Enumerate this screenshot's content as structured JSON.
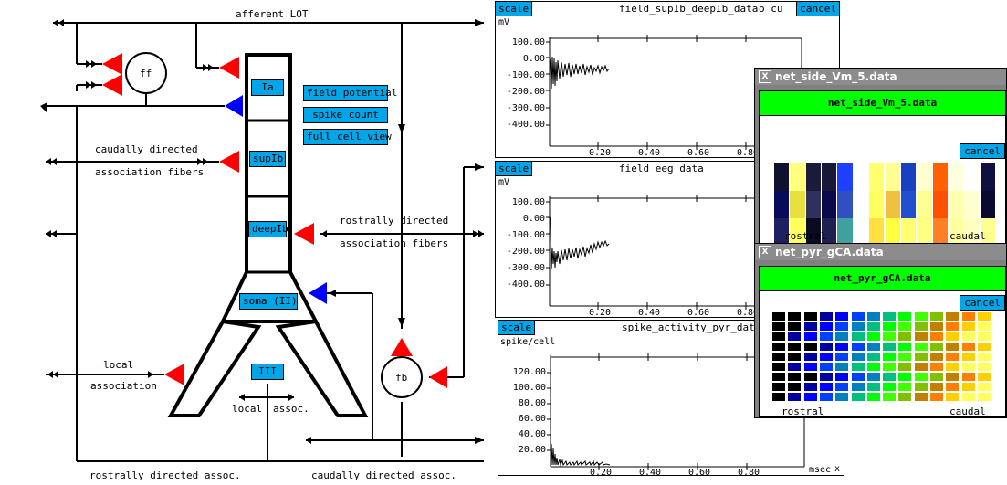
{
  "diagram": {
    "labels": {
      "afferent_lot": "afferent LOT",
      "ff": "ff",
      "fb": "fb",
      "caudal_1": "caudally directed",
      "caudal_2": "association fibers",
      "rostral_1": "rostrally directed",
      "rostral_2": "association fibers",
      "local_1": "local",
      "local_2": "association",
      "local_small": "local",
      "assoc_small": "assoc.",
      "rostral_bottom": "rostrally directed assoc.",
      "caudal_bottom": "caudally directed assoc."
    },
    "compartments": {
      "ia": "Ia",
      "supib": "supIb",
      "deepib": "deepIb",
      "soma": "soma (II)",
      "iii": "III"
    },
    "buttons": {
      "field_potential": "field potential",
      "spike_count": "spike count",
      "full_cell_view": "full cell view"
    },
    "colors": {
      "excitatory": "#ff0000",
      "inhibitory": "#0000ff",
      "button": "#00a6e8"
    }
  },
  "graphs": {
    "top": {
      "scale": "scale",
      "title": "field_supIb_deepIb_data",
      "unit": "mV",
      "extra": "o cu",
      "cancel": "cancel",
      "yticks": [
        "100.00",
        "0.00",
        "-100.00",
        "-200.00",
        "-300.00",
        "-400.00"
      ],
      "xticks": [
        "0.20",
        "0.40",
        "0.60",
        "0.80"
      ]
    },
    "mid": {
      "scale": "scale",
      "title": "field_eeg_data",
      "unit": "mV",
      "yticks": [
        "100.00",
        "0.00",
        "-100.00",
        "-200.00",
        "-300.00",
        "-400.00"
      ],
      "xticks": [
        "0.20",
        "0.40",
        "0.60",
        "0.80"
      ]
    },
    "bottom": {
      "scale": "scale",
      "title": "spike_activity_pyr_data",
      "unit": "spike/cell",
      "xunit": "msec",
      "close": "x",
      "yticks": [
        "120.00",
        "100.00",
        "80.00",
        "60.00",
        "40.00",
        "20.00"
      ],
      "xticks": [
        "0.20",
        "0.40",
        "0.60",
        "0.80"
      ]
    }
  },
  "windows": {
    "vm": {
      "title": "net_side_Vm_5.data",
      "banner": "net_side_Vm_5.data",
      "cancel": "cancel",
      "left": "rostral",
      "right": "caudal"
    },
    "gca": {
      "title": "net_pyr_gCA.data",
      "banner": "net_pyr_gCA.data",
      "cancel": "cancel",
      "left": "rostral",
      "right": "caudal"
    }
  }
}
